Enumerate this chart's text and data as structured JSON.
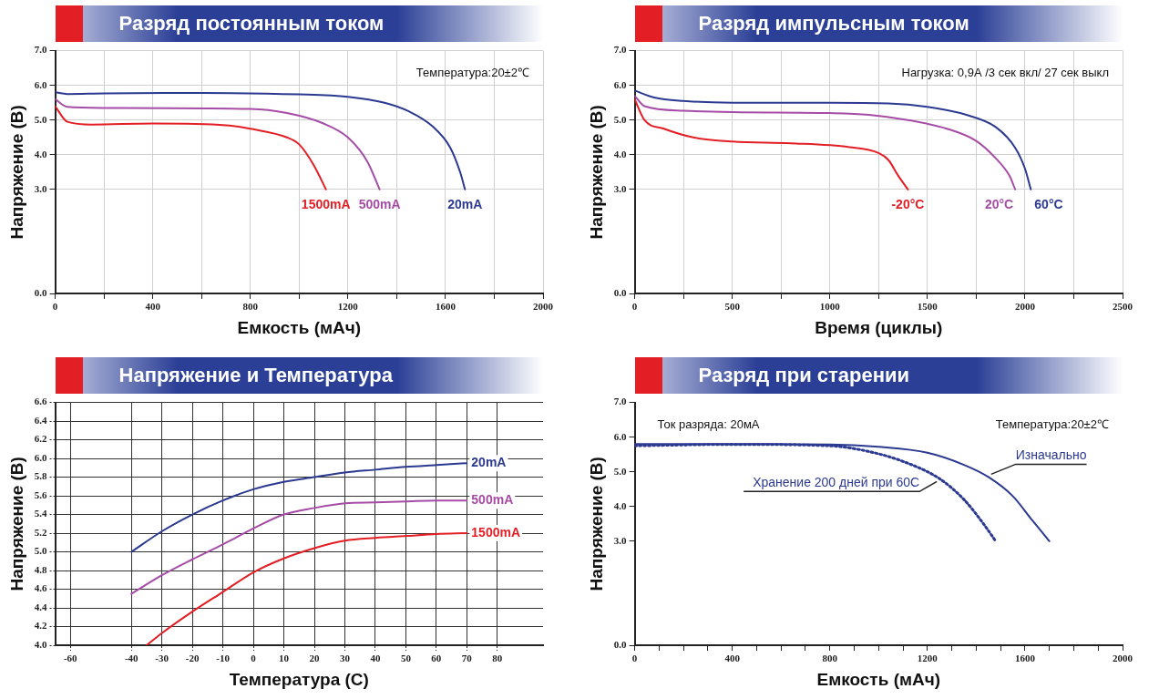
{
  "chart_data": [
    {
      "type": "line",
      "title": "Разряд постоянным током",
      "xlabel": "Емкость (мАч)",
      "ylabel": "Напряжение (В)",
      "annotations": [
        "Температура:20±2℃"
      ],
      "xlim": [
        0,
        2000
      ],
      "xticks": [
        0,
        {
          "value": 200,
          "label": null
        },
        400,
        {
          "value": 600,
          "label": null
        },
        800,
        {
          "value": 1000,
          "label": null
        },
        1200,
        {
          "value": 1400,
          "label": null
        },
        1600,
        {
          "value": 1800,
          "label": null
        },
        2000
      ],
      "ylim": [
        0,
        7
      ],
      "yticks": [
        {
          "value": 0,
          "label": "0.0"
        },
        {
          "value": 3,
          "label": "3.0"
        },
        {
          "value": 4,
          "label": "4.0"
        },
        {
          "value": 5,
          "label": "5.0"
        },
        {
          "value": 6,
          "label": "6.0"
        },
        {
          "value": 7,
          "label": "7.0"
        }
      ],
      "grid": true,
      "marker": "none",
      "line_style": "solid",
      "series": [
        {
          "name": "1500mA",
          "color": "#e31e24",
          "x": [
            0,
            50,
            150,
            400,
            700,
            800,
            950,
            1000,
            1060,
            1110
          ],
          "values": [
            5.4,
            4.95,
            4.87,
            4.9,
            4.85,
            4.75,
            4.5,
            4.3,
            3.7,
            3.0
          ]
        },
        {
          "name": "500mA",
          "color": "#a64ca6",
          "x": [
            0,
            50,
            200,
            800,
            950,
            1100,
            1200,
            1280,
            1330
          ],
          "values": [
            5.6,
            5.38,
            5.35,
            5.32,
            5.2,
            4.9,
            4.5,
            3.8,
            3.0
          ]
        },
        {
          "name": "20mA",
          "color": "#2b3990",
          "x": [
            0,
            50,
            200,
            600,
            1000,
            1200,
            1350,
            1450,
            1550,
            1620,
            1660,
            1680
          ],
          "values": [
            5.8,
            5.75,
            5.77,
            5.78,
            5.74,
            5.67,
            5.5,
            5.25,
            4.8,
            4.2,
            3.5,
            3.0
          ]
        }
      ]
    },
    {
      "type": "line",
      "title": "Разряд импульсным током",
      "xlabel": "Время (циклы)",
      "ylabel": "Напряжение (В)",
      "annotations": [
        "Нагрузка: 0,9А /3 сек вкл/ 27 сек выкл"
      ],
      "xlim": [
        0,
        2500
      ],
      "xticks": [
        0,
        {
          "value": 250,
          "label": null
        },
        500,
        {
          "value": 750,
          "label": null
        },
        1000,
        {
          "value": 1250,
          "label": null
        },
        1500,
        {
          "value": 1750,
          "label": null
        },
        2000,
        {
          "value": 2250,
          "label": null
        },
        2500
      ],
      "ylim": [
        0,
        7
      ],
      "yticks": [
        {
          "value": 0,
          "label": "0.0"
        },
        {
          "value": 3,
          "label": "3.0"
        },
        {
          "value": 4,
          "label": "4.0"
        },
        {
          "value": 5,
          "label": "5.0"
        },
        {
          "value": 6,
          "label": "6.0"
        },
        {
          "value": 7,
          "label": "7.0"
        }
      ],
      "grid": true,
      "marker": "none",
      "line_style": "solid",
      "series": [
        {
          "name": "-20°C",
          "color": "#e31e24",
          "x": [
            0,
            50,
            150,
            300,
            500,
            800,
            1100,
            1250,
            1300,
            1350,
            1400
          ],
          "values": [
            5.6,
            5.0,
            4.75,
            4.5,
            4.38,
            4.33,
            4.22,
            4.05,
            3.85,
            3.4,
            3.0
          ]
        },
        {
          "name": "20°C",
          "color": "#a64ca6",
          "x": [
            0,
            50,
            250,
            500,
            1000,
            1200,
            1400,
            1600,
            1750,
            1850,
            1920,
            1950
          ],
          "values": [
            5.7,
            5.4,
            5.27,
            5.23,
            5.2,
            5.15,
            5.0,
            4.75,
            4.4,
            3.9,
            3.4,
            3.0
          ]
        },
        {
          "name": "60°C",
          "color": "#2b3990",
          "x": [
            0,
            100,
            250,
            500,
            1000,
            1300,
            1500,
            1700,
            1850,
            1950,
            2000,
            2030
          ],
          "values": [
            5.85,
            5.65,
            5.55,
            5.5,
            5.5,
            5.48,
            5.38,
            5.15,
            4.8,
            4.2,
            3.6,
            3.0
          ]
        }
      ]
    },
    {
      "type": "line",
      "title": "Напряжение и Температура",
      "xlabel": "Температура (C)",
      "ylabel": "Напряжение (В)",
      "xlim": [
        -65,
        95
      ],
      "xticks": [
        -60,
        -40,
        -30,
        -20,
        -10,
        0,
        10,
        20,
        30,
        40,
        50,
        60,
        70,
        80
      ],
      "ylim": [
        4,
        6.6
      ],
      "yticks": [
        {
          "value": 4,
          "label": "4.0"
        },
        4.2,
        4.4,
        4.6,
        4.8,
        {
          "value": 5,
          "label": "5.0"
        },
        5.2,
        5.4,
        5.6,
        5.8,
        {
          "value": 6,
          "label": "6.0"
        },
        6.2,
        6.4,
        6.6
      ],
      "grid": true,
      "marker": "none",
      "line_style": "solid",
      "series": [
        {
          "name": "20mA",
          "color": "#2b3990",
          "x": [
            -40,
            -30,
            -20,
            -10,
            0,
            10,
            20,
            30,
            40,
            50,
            60,
            70
          ],
          "values": [
            5.0,
            5.22,
            5.4,
            5.55,
            5.67,
            5.75,
            5.8,
            5.85,
            5.88,
            5.91,
            5.93,
            5.95
          ]
        },
        {
          "name": "500mA",
          "color": "#a64ca6",
          "x": [
            -40,
            -30,
            -20,
            -10,
            0,
            10,
            20,
            30,
            40,
            50,
            60,
            70
          ],
          "values": [
            4.55,
            4.75,
            4.92,
            5.08,
            5.25,
            5.4,
            5.47,
            5.52,
            5.53,
            5.54,
            5.55,
            5.55
          ]
        },
        {
          "name": "1500mA",
          "color": "#e31e24",
          "x": [
            -35,
            -30,
            -20,
            -10,
            0,
            10,
            20,
            30,
            40,
            50,
            60,
            70
          ],
          "values": [
            4.0,
            4.13,
            4.36,
            4.57,
            4.78,
            4.93,
            5.04,
            5.12,
            5.15,
            5.17,
            5.19,
            5.2
          ]
        }
      ]
    },
    {
      "type": "line",
      "title": "Разряд при старении",
      "xlabel": "Емкость (мАч)",
      "ylabel": "Напряжение (В)",
      "annotations": [
        "Ток разряда: 20мА",
        "Температура:20±2℃"
      ],
      "xlim": [
        0,
        2000
      ],
      "xticks": [
        0,
        {
          "value": 100,
          "label": null
        },
        {
          "value": 200,
          "label": null
        },
        {
          "value": 300,
          "label": null
        },
        400,
        {
          "value": 500,
          "label": null
        },
        {
          "value": 600,
          "label": null
        },
        {
          "value": 700,
          "label": null
        },
        800,
        {
          "value": 900,
          "label": null
        },
        {
          "value": 1000,
          "label": null
        },
        {
          "value": 1100,
          "label": null
        },
        1200,
        {
          "value": 1300,
          "label": null
        },
        {
          "value": 1400,
          "label": null
        },
        {
          "value": 1500,
          "label": null
        },
        1600,
        {
          "value": 1700,
          "label": null
        },
        {
          "value": 1800,
          "label": null
        },
        {
          "value": 1900,
          "label": null
        },
        2000
      ],
      "ylim": [
        0,
        7
      ],
      "yticks": [
        {
          "value": 0,
          "label": "0.0"
        },
        {
          "value": 3,
          "label": "3.0"
        },
        {
          "value": 4,
          "label": "4.0"
        },
        {
          "value": 5,
          "label": "5.0"
        },
        {
          "value": 6,
          "label": "6.0"
        },
        {
          "value": 7,
          "label": "7.0"
        }
      ],
      "marker": "none",
      "series": [
        {
          "name": "Изначально",
          "color": "#2b3990",
          "line_style": "solid",
          "x": [
            0,
            400,
            800,
            1000,
            1200,
            1350,
            1450,
            1550,
            1630,
            1700
          ],
          "values": [
            5.8,
            5.8,
            5.79,
            5.72,
            5.55,
            5.2,
            4.85,
            4.3,
            3.6,
            3.0
          ]
        },
        {
          "name": "Хранение 200 дней при 60С",
          "color": "#2b3990",
          "line_style": "dotted",
          "x": [
            0,
            400,
            800,
            950,
            1100,
            1250,
            1350,
            1430,
            1480
          ],
          "values": [
            5.75,
            5.79,
            5.75,
            5.6,
            5.3,
            4.8,
            4.2,
            3.5,
            3.0
          ]
        }
      ]
    }
  ]
}
